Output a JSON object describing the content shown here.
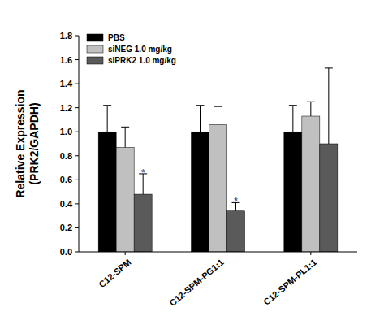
{
  "chart_data": {
    "type": "bar",
    "y_label": [
      "Relative Expression",
      "(PRK2/GAPDH)"
    ],
    "categories": [
      "C12-SPM",
      "C12-SPM-PG1:1",
      "C12-SPM-PL1:1"
    ],
    "series": [
      {
        "name": "PBS",
        "color": "#000000",
        "values": [
          1.0,
          1.0,
          1.0
        ],
        "errors": [
          0.22,
          0.22,
          0.22
        ]
      },
      {
        "name": "siNEG 1.0 mg/kg",
        "color": "#c0c0c0",
        "values": [
          0.87,
          1.06,
          1.13
        ],
        "errors": [
          0.17,
          0.15,
          0.12
        ]
      },
      {
        "name": "siPRK2 1.0 mg/kg",
        "color": "#5a5a5a",
        "values": [
          0.48,
          0.34,
          0.9
        ],
        "errors": [
          0.17,
          0.07,
          0.63
        ],
        "annotations": [
          "*",
          "*",
          null
        ]
      }
    ],
    "ylim": [
      0,
      1.8
    ],
    "yticks": [
      {
        "value": 0,
        "label": "0.0"
      },
      0.2,
      0.4,
      0.6,
      0.8,
      {
        "value": 1,
        "label": "1.0"
      },
      1.2,
      1.4,
      1.6,
      1.8
    ],
    "legend": "upper-left"
  }
}
